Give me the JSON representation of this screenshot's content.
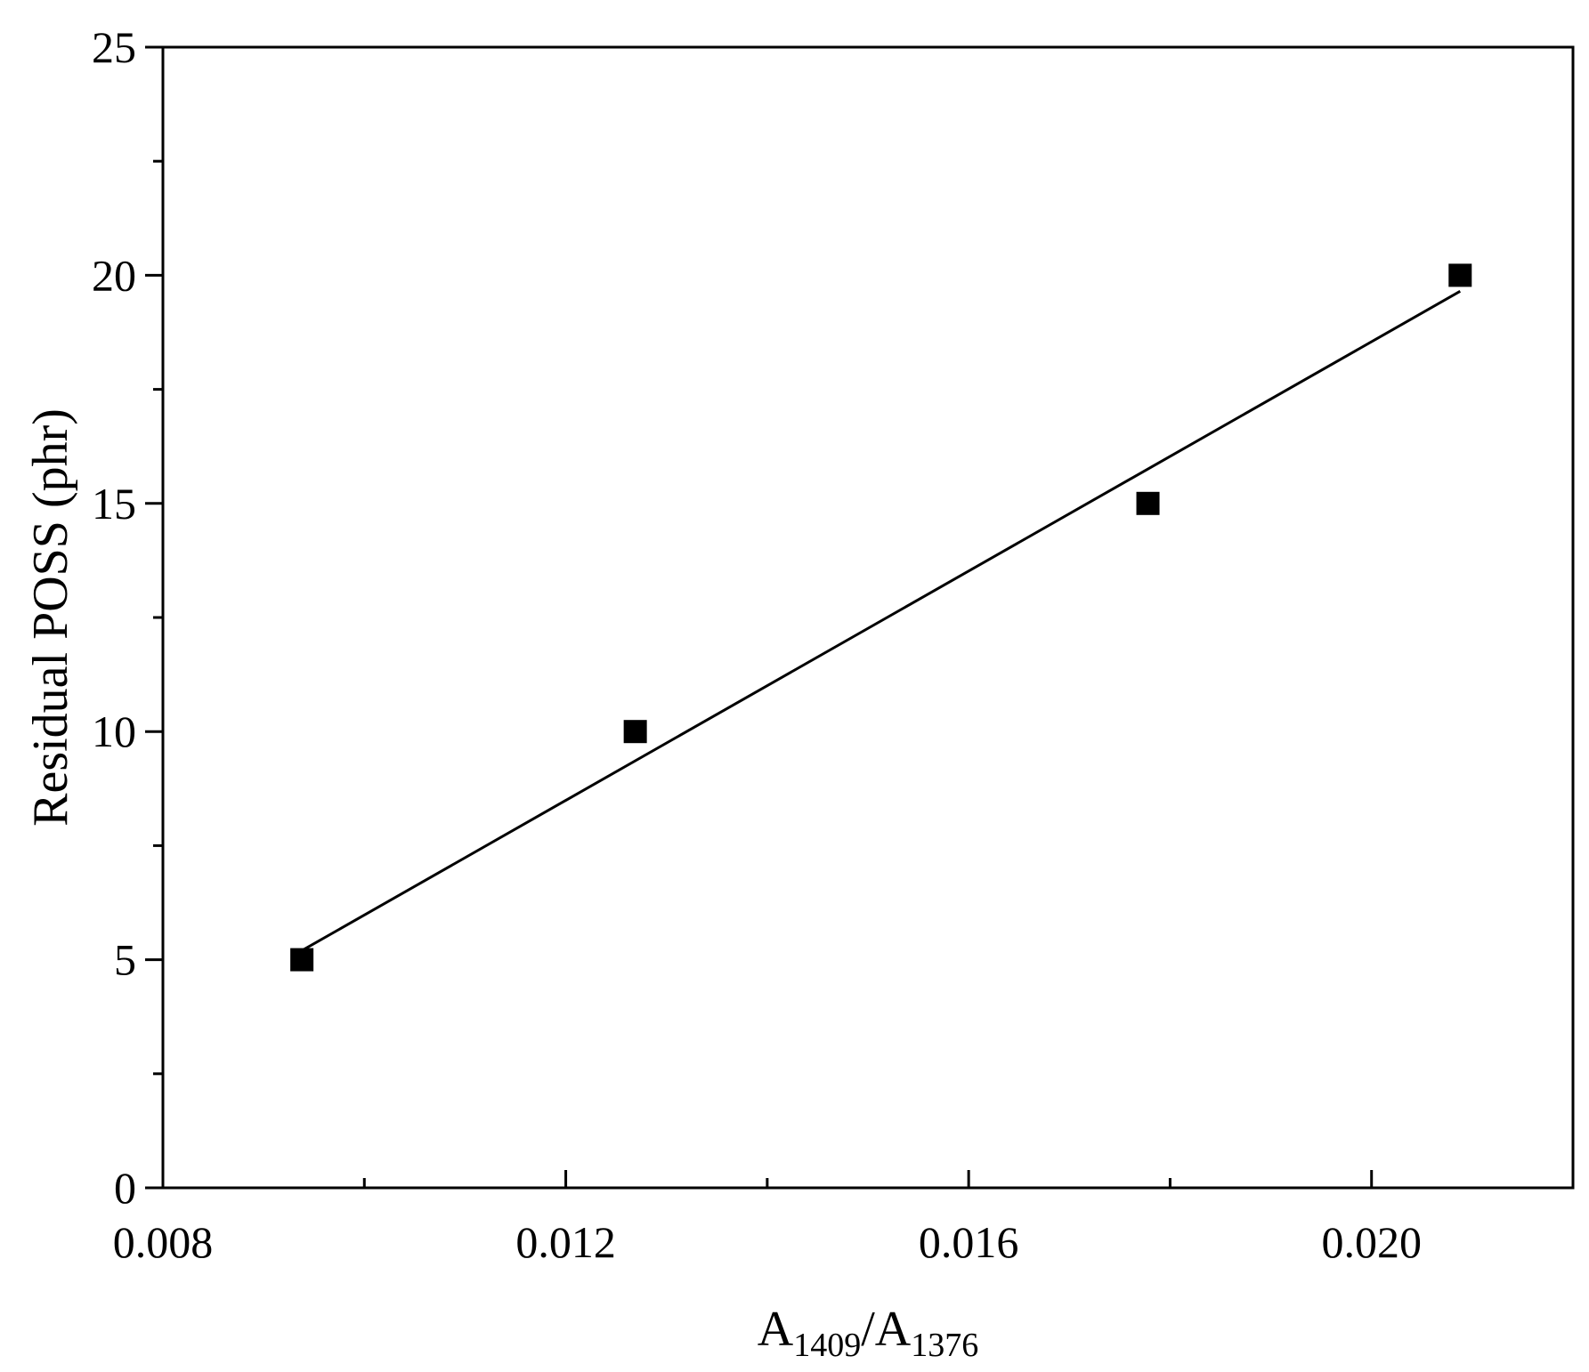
{
  "chart_data": {
    "type": "scatter",
    "title": "",
    "xlabel": {
      "parts": [
        {
          "text": "A",
          "sub": false
        },
        {
          "text": "1409",
          "sub": true
        },
        {
          "text": "/A",
          "sub": false
        },
        {
          "text": "1376",
          "sub": true
        }
      ],
      "plain": "A1409/A1376"
    },
    "ylabel": "Residual POSS (phr)",
    "xlim": [
      0.008,
      0.022
    ],
    "ylim": [
      0,
      25
    ],
    "x_major_ticks": [
      0.008,
      0.012,
      0.016,
      0.02
    ],
    "x_tick_labels": [
      "0.008",
      "0.012",
      "0.016",
      "0.020"
    ],
    "x_minor_ticks": [
      0.01,
      0.014,
      0.018
    ],
    "y_major_ticks": [
      0,
      5,
      10,
      15,
      20,
      25
    ],
    "y_tick_labels": [
      "0",
      "5",
      "10",
      "15",
      "20",
      "25"
    ],
    "y_minor_ticks": [
      2.5,
      7.5,
      12.5,
      17.5,
      22.5
    ],
    "grid": false,
    "series": [
      {
        "marker": "square",
        "color": "#000000",
        "points": [
          {
            "x": 0.00938,
            "y": 5
          },
          {
            "x": 0.01269,
            "y": 10
          },
          {
            "x": 0.01778,
            "y": 15
          },
          {
            "x": 0.02088,
            "y": 20
          }
        ]
      }
    ],
    "fit_line": {
      "color": "#000000",
      "x": [
        0.00938,
        0.02088
      ],
      "y": [
        5.2,
        19.65
      ]
    }
  }
}
